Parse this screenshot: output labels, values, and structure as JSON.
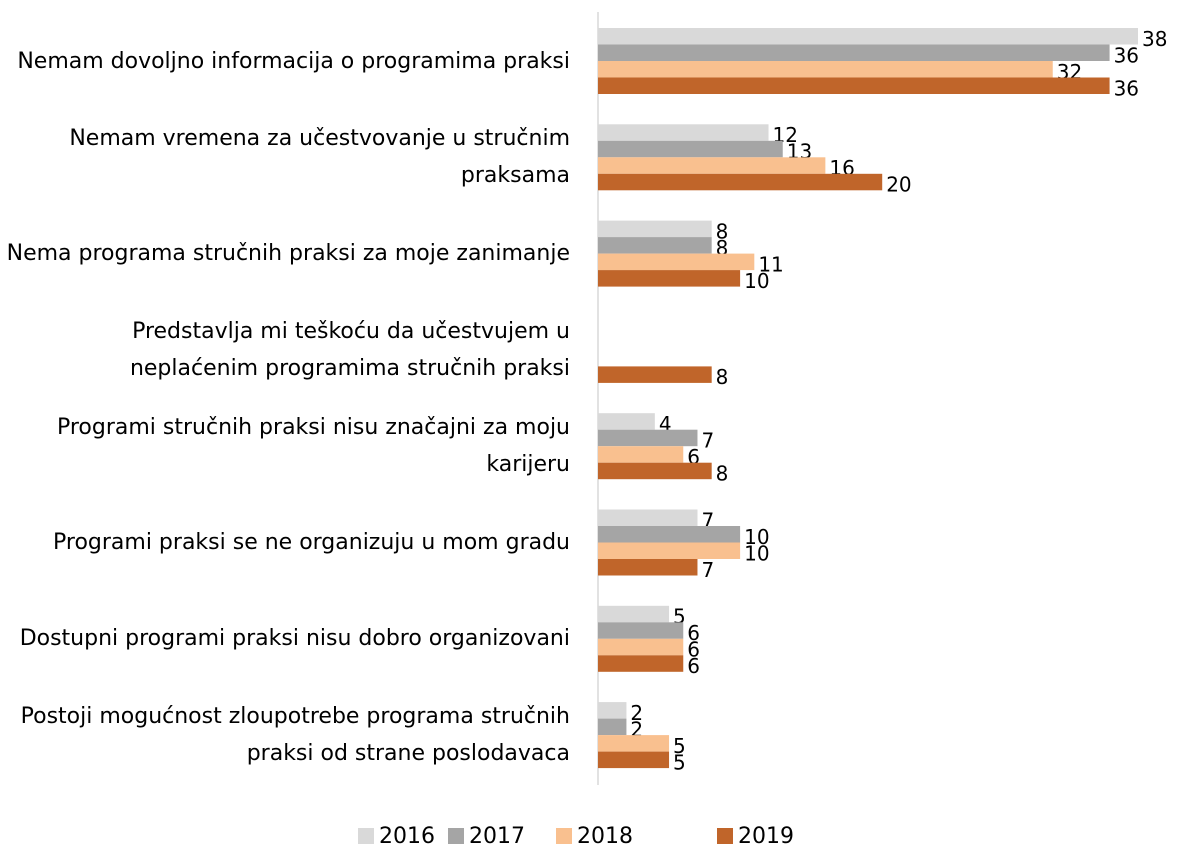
{
  "chart_data": {
    "type": "bar",
    "orientation": "horizontal",
    "categories": [
      "Nemam dovoljno informacija o programima praksi",
      "Nemam vremena za učestvovanje u stručnim praksama",
      "Nema programa stručnih praksi za moje zanimanje",
      "Predstavlja mi teškoću da učestvujem u neplaćenim programima stručnih praksi",
      "Programi stručnih praksi nisu značajni za moju karijeru",
      "Programi praksi se ne organizuju u mom gradu",
      "Dostupni programi praksi nisu dobro organizovani",
      "Postoji mogućnost zloupotrebe programa stručnih praksi od strane poslodavaca"
    ],
    "series": [
      {
        "name": "2016",
        "color": "#d9d9d9",
        "values": [
          38,
          12,
          8,
          null,
          4,
          7,
          5,
          2
        ]
      },
      {
        "name": "2017",
        "color": "#a5a5a5",
        "values": [
          36,
          13,
          8,
          null,
          7,
          10,
          6,
          2
        ]
      },
      {
        "name": "2018",
        "color": "#f9c08f",
        "values": [
          32,
          16,
          11,
          null,
          6,
          10,
          6,
          5
        ]
      },
      {
        "name": "2019",
        "color": "#c0652a",
        "values": [
          36,
          20,
          10,
          8,
          8,
          7,
          6,
          5
        ]
      }
    ],
    "legend": "bottom"
  }
}
